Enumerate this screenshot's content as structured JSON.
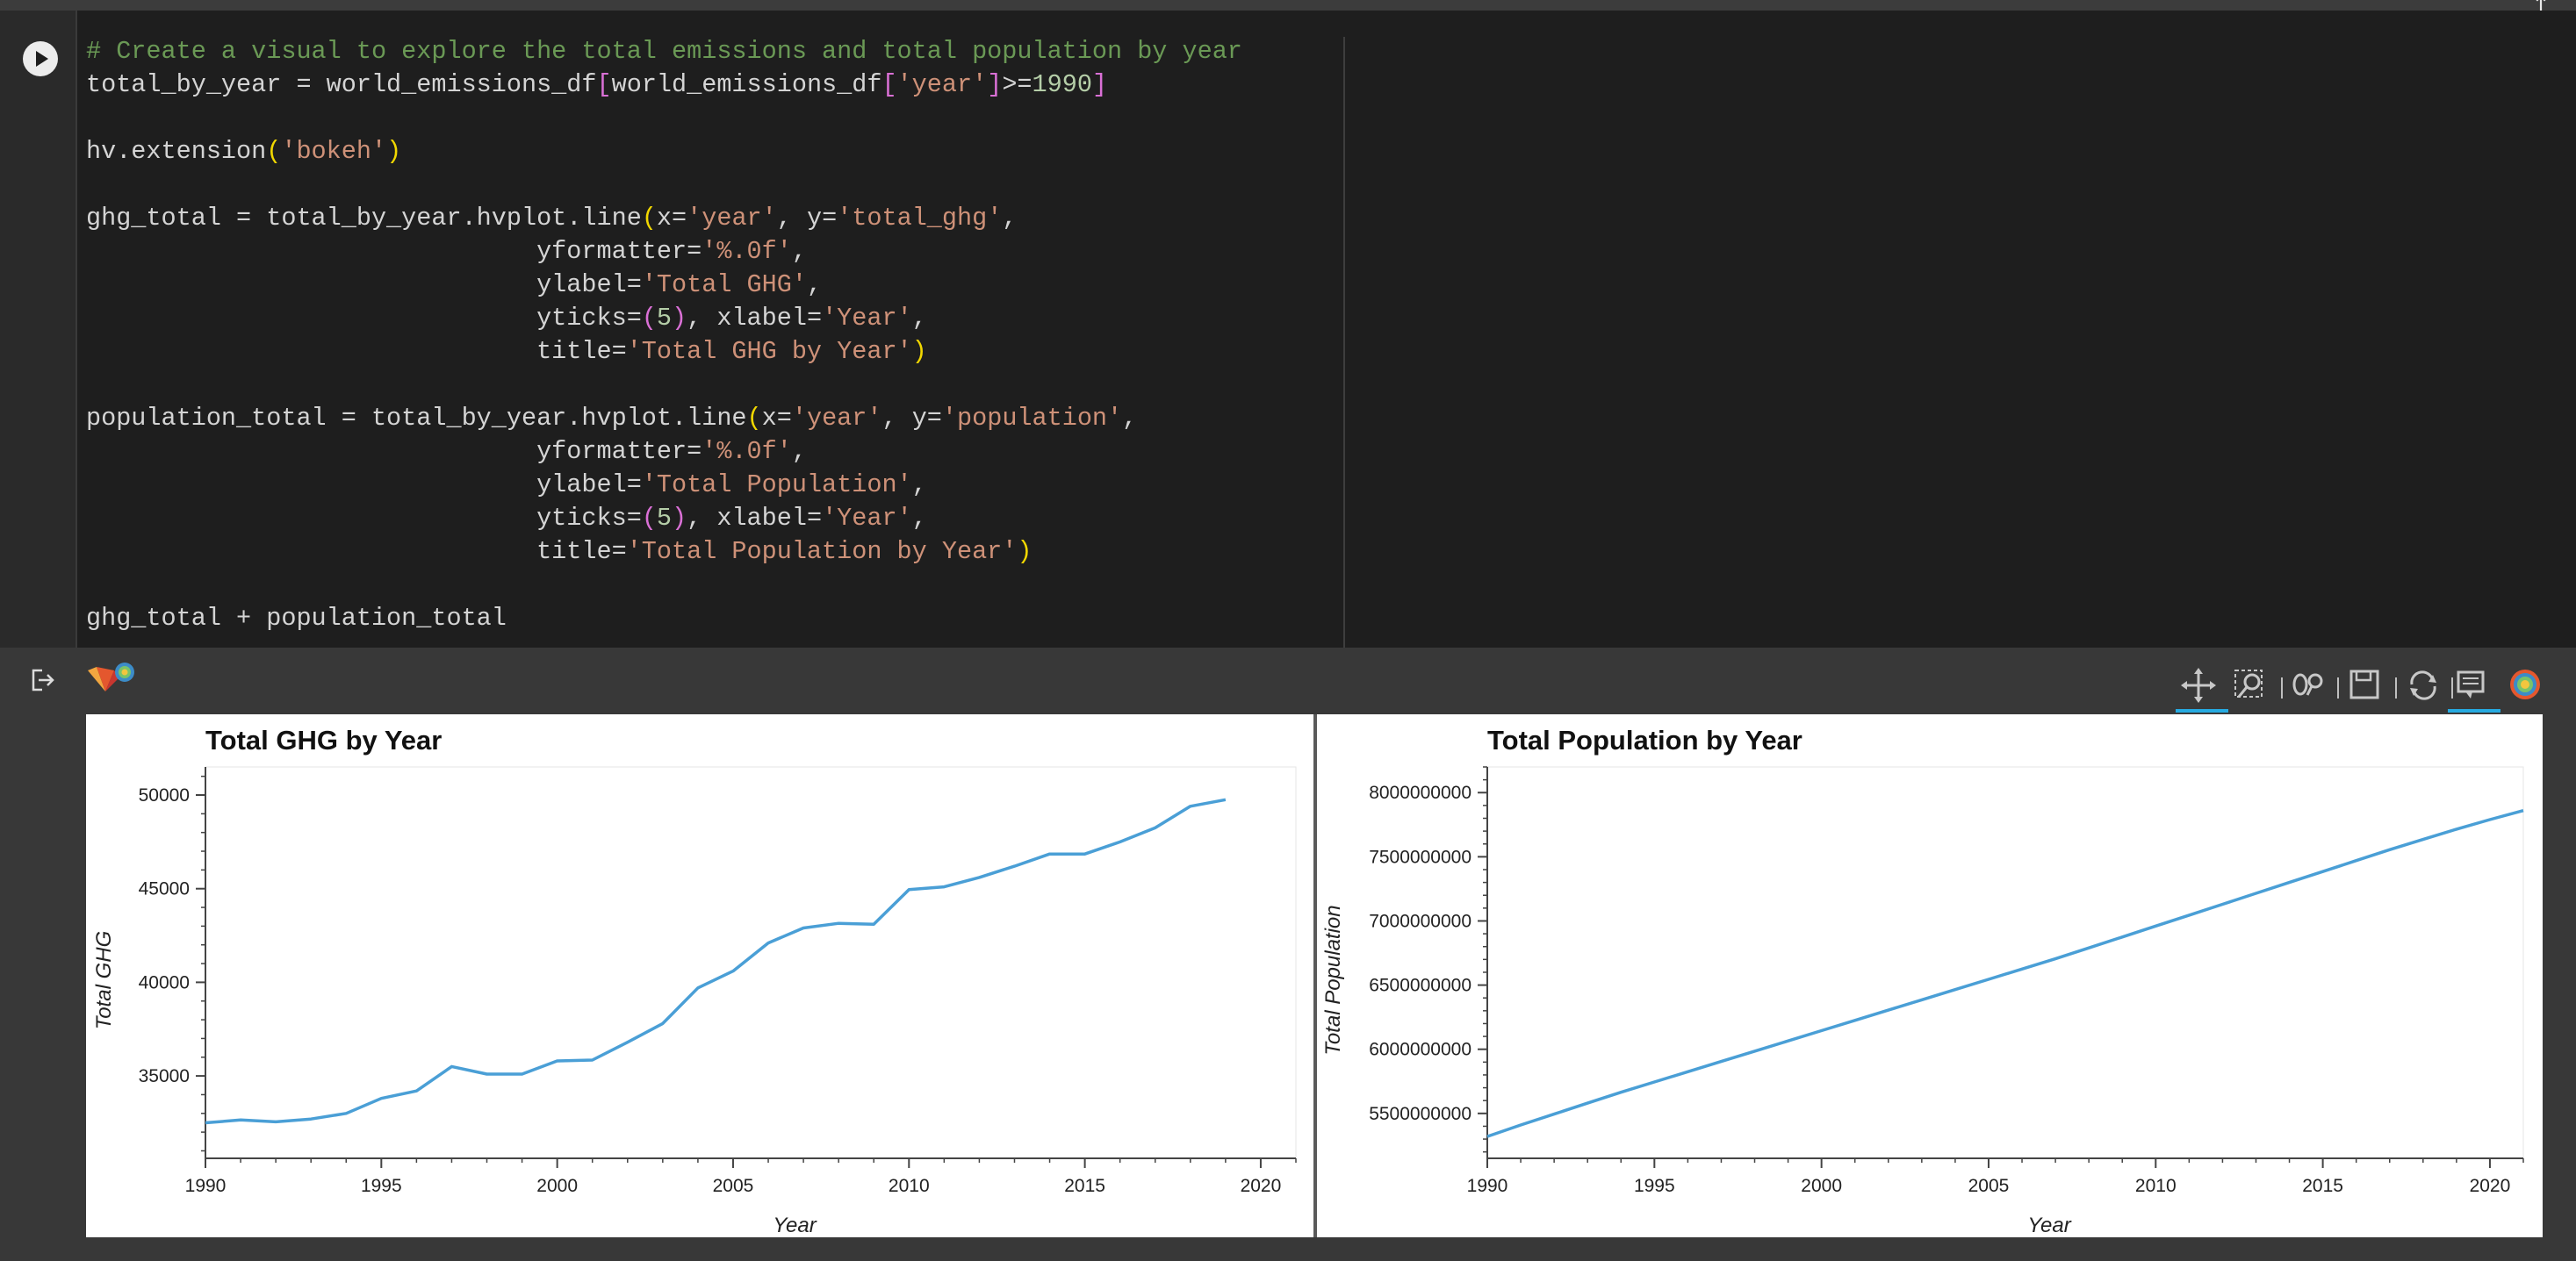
{
  "page": {
    "up_arrow_icon": "arrow-up-icon"
  },
  "cell": {
    "run_icon": "play-icon",
    "code_lines": [
      "# Create a visual to explore the total emissions and total population by year",
      "total_by_year = world_emissions_df[world_emissions_df['year']>=1990]",
      "",
      "hv.extension('bokeh')",
      "",
      "ghg_total = total_by_year.hvplot.line(x='year', y='total_ghg',",
      "                              yformatter='%.0f',",
      "                              ylabel='Total GHG',",
      "                              yticks=(5), xlabel='Year',",
      "                              title='Total GHG by Year')",
      "",
      "population_total = total_by_year.hvplot.line(x='year', y='population',",
      "                              yformatter='%.0f',",
      "                              ylabel='Total Population',",
      "                              yticks=(5), xlabel='Year',",
      "                              title='Total Population by Year')",
      "",
      "ghg_total + population_total"
    ]
  },
  "output": {
    "output_icon": "output-redirect-icon",
    "logo_icon": "bokeh-holoviews-logo-icon",
    "toolbar": [
      {
        "name": "pan-tool-icon",
        "active": true
      },
      {
        "name": "box-zoom-tool-icon",
        "active": false
      },
      {
        "name": "wheel-zoom-tool-icon",
        "active": false
      },
      {
        "name": "save-tool-icon",
        "active": false
      },
      {
        "name": "reset-tool-icon",
        "active": false
      },
      {
        "name": "hover-tool-icon",
        "active": true
      },
      {
        "name": "bokeh-logo-icon",
        "active": false
      }
    ]
  },
  "colors": {
    "line": "#4a9fd6",
    "axis": "#444444"
  },
  "chart_data": [
    {
      "type": "line",
      "title": "Total GHG by Year",
      "xlabel": "Year",
      "ylabel": "Total GHG",
      "xlim": [
        1990,
        2021
      ],
      "ylim": [
        30600,
        51500
      ],
      "xticks": [
        1990,
        1995,
        2000,
        2005,
        2010,
        2015,
        2020
      ],
      "yticks": [
        35000,
        40000,
        45000,
        50000
      ],
      "x": [
        1990,
        1991,
        1992,
        1993,
        1994,
        1995,
        1996,
        1997,
        1998,
        1999,
        2000,
        2001,
        2002,
        2003,
        2004,
        2005,
        2006,
        2007,
        2008,
        2009,
        2010,
        2011,
        2012,
        2013,
        2014,
        2015,
        2016,
        2017,
        2018,
        2019
      ],
      "y": [
        32500,
        32650,
        32550,
        32700,
        33000,
        33800,
        34200,
        35500,
        35100,
        35100,
        35800,
        35850,
        36800,
        37800,
        39700,
        40600,
        42100,
        42900,
        43150,
        43100,
        44950,
        45100,
        45600,
        46200,
        46850,
        46850,
        47500,
        48250,
        49400,
        49750
      ],
      "grid": false,
      "legend": "none"
    },
    {
      "type": "line",
      "title": "Total Population by Year",
      "xlabel": "Year",
      "ylabel": "Total Population",
      "xlim": [
        1990,
        2021
      ],
      "ylim": [
        5150000000,
        8200000000
      ],
      "xticks": [
        1990,
        1995,
        2000,
        2005,
        2010,
        2015,
        2020
      ],
      "yticks": [
        5500000000,
        6000000000,
        6500000000,
        7000000000,
        7500000000,
        8000000000
      ],
      "x": [
        1990,
        1991,
        1992,
        1993,
        1994,
        1995,
        1996,
        1997,
        1998,
        1999,
        2000,
        2001,
        2002,
        2003,
        2004,
        2005,
        2006,
        2007,
        2008,
        2009,
        2010,
        2011,
        2012,
        2013,
        2014,
        2015,
        2016,
        2017,
        2018,
        2019,
        2020,
        2021
      ],
      "y": [
        5320000000,
        5410000000,
        5495000000,
        5580000000,
        5665000000,
        5745000000,
        5825000000,
        5905000000,
        5985000000,
        6065000000,
        6145000000,
        6225000000,
        6305000000,
        6385000000,
        6465000000,
        6545000000,
        6625000000,
        6705000000,
        6790000000,
        6875000000,
        6960000000,
        7045000000,
        7130000000,
        7215000000,
        7300000000,
        7385000000,
        7470000000,
        7555000000,
        7635000000,
        7715000000,
        7790000000,
        7860000000
      ],
      "grid": false,
      "legend": "none"
    }
  ]
}
